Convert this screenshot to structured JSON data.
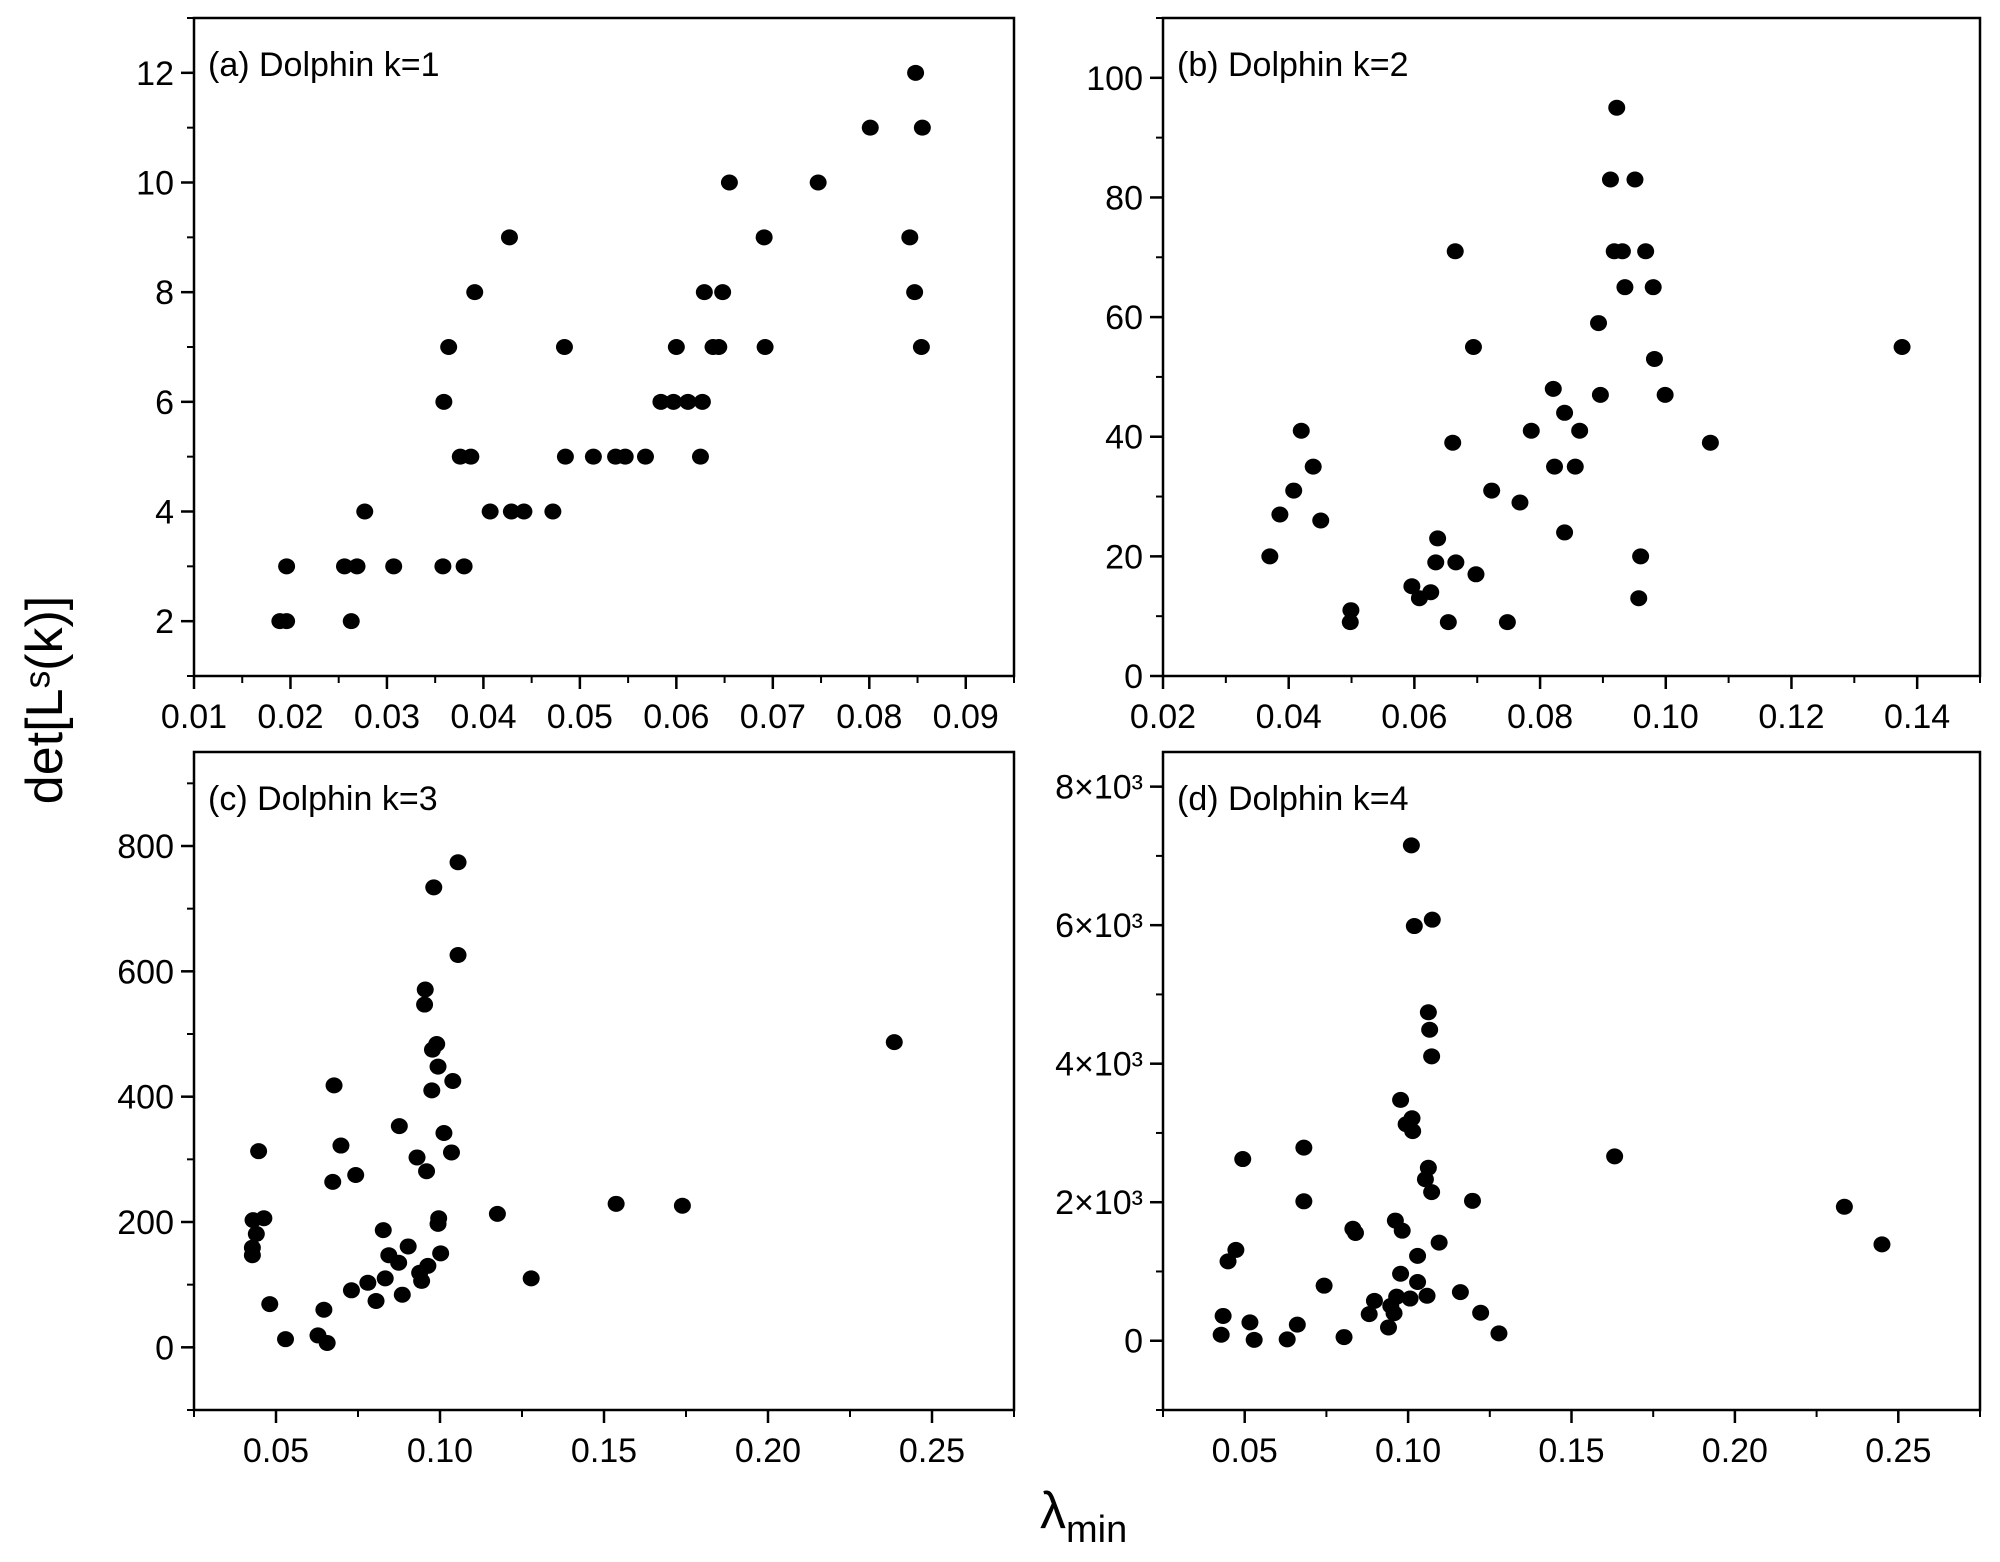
{
  "figure": {
    "ylabel": "det[Lˢ(k)]",
    "xlabel_symbol": "λ",
    "xlabel_subscript": "min"
  },
  "chart_data": [
    {
      "type": "scatter",
      "title": "(a) Dolphin  k=1",
      "xlim": [
        0.01,
        0.095
      ],
      "ylim": [
        1,
        13
      ],
      "xticks": [
        0.01,
        0.02,
        0.03,
        0.04,
        0.05,
        0.06,
        0.07,
        0.08,
        0.09
      ],
      "xtick_labels": [
        "0.01",
        "0.02",
        "0.03",
        "0.04",
        "0.05",
        "0.06",
        "0.07",
        "0.08",
        "0.09"
      ],
      "xminor": 0.005,
      "yticks": [
        2,
        4,
        6,
        8,
        10,
        12
      ],
      "ytick_labels": [
        "2",
        "4",
        "6",
        "8",
        "10",
        "12"
      ],
      "yminor": 1,
      "marker_color": "#000000",
      "points": [
        [
          0.0189,
          2
        ],
        [
          0.0196,
          2
        ],
        [
          0.0196,
          3
        ],
        [
          0.0256,
          3
        ],
        [
          0.0269,
          3
        ],
        [
          0.0263,
          2
        ],
        [
          0.0277,
          4
        ],
        [
          0.0307,
          3
        ],
        [
          0.0358,
          3
        ],
        [
          0.038,
          3
        ],
        [
          0.0359,
          6
        ],
        [
          0.0364,
          7
        ],
        [
          0.0376,
          5
        ],
        [
          0.0387,
          5
        ],
        [
          0.0391,
          8
        ],
        [
          0.0407,
          4
        ],
        [
          0.0427,
          9
        ],
        [
          0.0429,
          4
        ],
        [
          0.0442,
          4
        ],
        [
          0.0472,
          4
        ],
        [
          0.0484,
          7
        ],
        [
          0.0485,
          5
        ],
        [
          0.0514,
          5
        ],
        [
          0.0537,
          5
        ],
        [
          0.0547,
          5
        ],
        [
          0.0568,
          5
        ],
        [
          0.0584,
          6
        ],
        [
          0.0597,
          6
        ],
        [
          0.06,
          7
        ],
        [
          0.0612,
          6
        ],
        [
          0.0627,
          6
        ],
        [
          0.0625,
          5
        ],
        [
          0.0629,
          8
        ],
        [
          0.0638,
          7
        ],
        [
          0.0644,
          7
        ],
        [
          0.0648,
          8
        ],
        [
          0.0655,
          10
        ],
        [
          0.0691,
          9
        ],
        [
          0.0692,
          7
        ],
        [
          0.0747,
          10
        ],
        [
          0.0801,
          11
        ],
        [
          0.0842,
          9
        ],
        [
          0.0847,
          8
        ],
        [
          0.0848,
          12
        ],
        [
          0.0854,
          7
        ],
        [
          0.0855,
          11
        ]
      ]
    },
    {
      "type": "scatter",
      "title": "(b) Dolphin  k=2",
      "xlim": [
        0.02,
        0.15
      ],
      "ylim": [
        0,
        110
      ],
      "xticks": [
        0.02,
        0.04,
        0.06,
        0.08,
        0.1,
        0.12,
        0.14
      ],
      "xtick_labels": [
        "0.02",
        "0.04",
        "0.06",
        "0.08",
        "0.10",
        "0.12",
        "0.14"
      ],
      "xminor": 0.01,
      "yticks": [
        0,
        20,
        40,
        60,
        80,
        100
      ],
      "ytick_labels": [
        "0",
        "20",
        "40",
        "60",
        "80",
        "100"
      ],
      "yminor": 10,
      "marker_color": "#000000",
      "points": [
        [
          0.037,
          20
        ],
        [
          0.0386,
          27
        ],
        [
          0.0408,
          31
        ],
        [
          0.042,
          41
        ],
        [
          0.0439,
          35
        ],
        [
          0.0451,
          26
        ],
        [
          0.0498,
          9
        ],
        [
          0.0499,
          11
        ],
        [
          0.0596,
          15
        ],
        [
          0.0608,
          13
        ],
        [
          0.0626,
          14
        ],
        [
          0.0634,
          19
        ],
        [
          0.0637,
          23
        ],
        [
          0.0654,
          9
        ],
        [
          0.0661,
          39
        ],
        [
          0.0665,
          71
        ],
        [
          0.0666,
          19
        ],
        [
          0.0694,
          55
        ],
        [
          0.0698,
          17
        ],
        [
          0.0723,
          31
        ],
        [
          0.0748,
          9
        ],
        [
          0.0768,
          29
        ],
        [
          0.0786,
          41
        ],
        [
          0.0821,
          48
        ],
        [
          0.0823,
          35
        ],
        [
          0.0839,
          44
        ],
        [
          0.0839,
          24
        ],
        [
          0.0856,
          35
        ],
        [
          0.0863,
          41
        ],
        [
          0.0893,
          59
        ],
        [
          0.0896,
          47
        ],
        [
          0.0912,
          83
        ],
        [
          0.0918,
          71
        ],
        [
          0.0922,
          95
        ],
        [
          0.0931,
          71
        ],
        [
          0.0935,
          65
        ],
        [
          0.0951,
          83
        ],
        [
          0.0957,
          13
        ],
        [
          0.096,
          20
        ],
        [
          0.0968,
          71
        ],
        [
          0.098,
          65
        ],
        [
          0.0982,
          53
        ],
        [
          0.0999,
          47
        ],
        [
          0.1071,
          39
        ],
        [
          0.1376,
          55
        ]
      ]
    },
    {
      "type": "scatter",
      "title": "(c) Dolphin  k=3",
      "xlim": [
        0.025,
        0.275
      ],
      "ylim": [
        -100,
        950
      ],
      "xticks": [
        0.05,
        0.1,
        0.15,
        0.2,
        0.25
      ],
      "xtick_labels": [
        "0.05",
        "0.10",
        "0.15",
        "0.20",
        "0.25"
      ],
      "xminor": 0.025,
      "yticks": [
        0,
        200,
        400,
        600,
        800
      ],
      "ytick_labels": [
        "0",
        "200",
        "400",
        "600",
        "800"
      ],
      "yminor": 100,
      "marker_color": "#000000",
      "points": [
        [
          0.0428,
          159
        ],
        [
          0.0428,
          147
        ],
        [
          0.043,
          203
        ],
        [
          0.044,
          181
        ],
        [
          0.0463,
          206
        ],
        [
          0.0447,
          313
        ],
        [
          0.0481,
          69
        ],
        [
          0.0529,
          13
        ],
        [
          0.0628,
          19
        ],
        [
          0.0646,
          60
        ],
        [
          0.0656,
          7
        ],
        [
          0.0673,
          264
        ],
        [
          0.0677,
          418
        ],
        [
          0.0698,
          322
        ],
        [
          0.073,
          91
        ],
        [
          0.0743,
          275
        ],
        [
          0.078,
          103
        ],
        [
          0.0805,
          74
        ],
        [
          0.0827,
          187
        ],
        [
          0.0833,
          110
        ],
        [
          0.0844,
          147
        ],
        [
          0.0874,
          135
        ],
        [
          0.0876,
          353
        ],
        [
          0.0885,
          84
        ],
        [
          0.0903,
          161
        ],
        [
          0.093,
          303
        ],
        [
          0.0938,
          119
        ],
        [
          0.0944,
          106
        ],
        [
          0.0955,
          571
        ],
        [
          0.0953,
          547
        ],
        [
          0.0959,
          281
        ],
        [
          0.0963,
          130
        ],
        [
          0.0975,
          410
        ],
        [
          0.0977,
          475
        ],
        [
          0.0981,
          734
        ],
        [
          0.099,
          484
        ],
        [
          0.0994,
          448
        ],
        [
          0.0994,
          197
        ],
        [
          0.0996,
          206
        ],
        [
          0.1002,
          150
        ],
        [
          0.1012,
          342
        ],
        [
          0.1035,
          311
        ],
        [
          0.1039,
          425
        ],
        [
          0.1055,
          626
        ],
        [
          0.1055,
          774
        ],
        [
          0.1175,
          213
        ],
        [
          0.1278,
          110
        ],
        [
          0.1537,
          229
        ],
        [
          0.1739,
          226
        ],
        [
          0.2385,
          487
        ]
      ]
    },
    {
      "type": "scatter",
      "title": "(d) Dolphin  k=4",
      "xlim": [
        0.025,
        0.275
      ],
      "ylim": [
        -1000,
        8500
      ],
      "xticks": [
        0.05,
        0.1,
        0.15,
        0.2,
        0.25
      ],
      "xtick_labels": [
        "0.05",
        "0.10",
        "0.15",
        "0.20",
        "0.25"
      ],
      "xminor": 0.025,
      "yticks": [
        0,
        2000,
        4000,
        6000,
        8000
      ],
      "ytick_labels": [
        "0",
        "2×10³",
        "4×10³",
        "6×10³",
        "8×10³"
      ],
      "yminor": 1000,
      "marker_color": "#000000",
      "points": [
        [
          0.0428,
          86
        ],
        [
          0.0434,
          358
        ],
        [
          0.0449,
          1146
        ],
        [
          0.0473,
          1311
        ],
        [
          0.0494,
          2623
        ],
        [
          0.0516,
          265
        ],
        [
          0.0529,
          13
        ],
        [
          0.063,
          20
        ],
        [
          0.0661,
          232
        ],
        [
          0.0681,
          2788
        ],
        [
          0.0681,
          2013
        ],
        [
          0.0743,
          795
        ],
        [
          0.0804,
          53
        ],
        [
          0.0831,
          1616
        ],
        [
          0.0839,
          1556
        ],
        [
          0.0881,
          384
        ],
        [
          0.0897,
          576
        ],
        [
          0.094,
          192
        ],
        [
          0.0947,
          503
        ],
        [
          0.0957,
          397
        ],
        [
          0.0961,
          1735
        ],
        [
          0.0965,
          636
        ],
        [
          0.0977,
          3477
        ],
        [
          0.0977,
          967
        ],
        [
          0.0982,
          1589
        ],
        [
          0.0994,
          3126
        ],
        [
          0.1006,
          609
        ],
        [
          0.101,
          7152
        ],
        [
          0.1012,
          3212
        ],
        [
          0.1014,
          3026
        ],
        [
          0.1019,
          5987
        ],
        [
          0.1029,
          1225
        ],
        [
          0.1029,
          848
        ],
        [
          0.1053,
          2331
        ],
        [
          0.1058,
          649
        ],
        [
          0.1062,
          4742
        ],
        [
          0.1062,
          2497
        ],
        [
          0.1066,
          4490
        ],
        [
          0.1072,
          4106
        ],
        [
          0.1072,
          2146
        ],
        [
          0.1074,
          6079
        ],
        [
          0.1095,
          1417
        ],
        [
          0.116,
          702
        ],
        [
          0.1197,
          2020
        ],
        [
          0.1222,
          404
        ],
        [
          0.1278,
          106
        ],
        [
          0.1632,
          2662
        ],
        [
          0.2335,
          1934
        ],
        [
          0.245,
          1391
        ]
      ]
    }
  ]
}
